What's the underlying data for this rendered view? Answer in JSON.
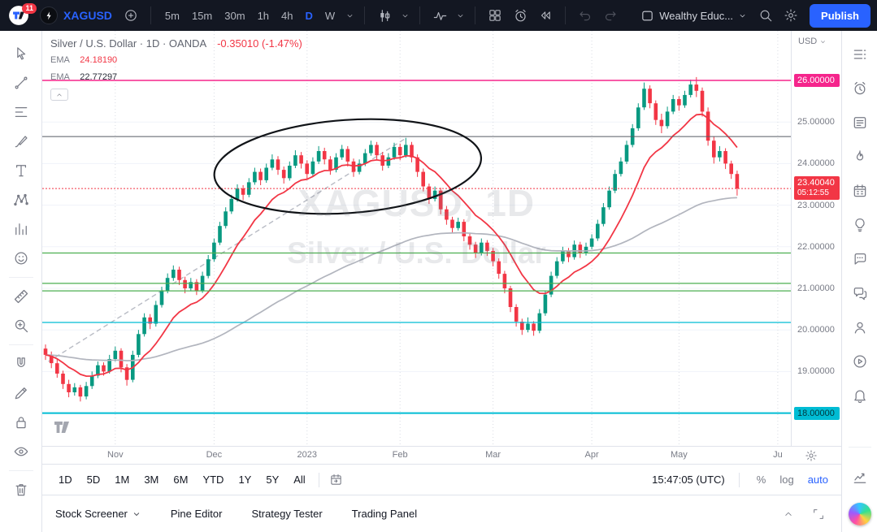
{
  "topbar": {
    "notification_count": "11",
    "symbol": "XAGUSD",
    "timeframes": [
      "5m",
      "15m",
      "30m",
      "1h",
      "4h",
      "D",
      "W"
    ],
    "active_timeframe": "D",
    "layout_name": "Wealthy Educ...",
    "publish_label": "Publish"
  },
  "left_toolbar": {
    "groups": [
      [
        "cursor",
        "trend-line",
        "fib-retracement",
        "brush",
        "text",
        "xabcd-pattern",
        "forecast",
        "emoji"
      ],
      [
        "ruler",
        "zoom"
      ],
      [
        "magnet",
        "edit",
        "lock",
        "eye"
      ],
      [
        "trash"
      ]
    ]
  },
  "right_sidebar": {
    "items": [
      "watchlist",
      "alerts",
      "news",
      "hotlists",
      "economic-calendar",
      "ideas",
      "chat",
      "messages",
      "streams",
      "videos",
      "notifications"
    ],
    "bottom_items": [
      "chart-arrow",
      "ai-assistant"
    ]
  },
  "legend": {
    "title": "Silver / U.S. Dollar · 1D · OANDA",
    "change": "-0.35010 (-1.47%)",
    "ema1_label": "EMA",
    "ema1_value": "24.18190",
    "ema2_label": "EMA",
    "ema2_value": "22.77297"
  },
  "price_scale": {
    "currency": "USD"
  },
  "range_toolbar": {
    "ranges": [
      "1D",
      "5D",
      "1M",
      "3M",
      "6M",
      "YTD",
      "1Y",
      "5Y",
      "All"
    ],
    "clock": "15:47:05 (UTC)",
    "percent": "%",
    "log": "log",
    "auto": "auto"
  },
  "bottom_panel": {
    "tabs": [
      "Stock Screener",
      "Pine Editor",
      "Strategy Tester",
      "Trading Panel"
    ]
  },
  "chart_data": {
    "type": "candlestick",
    "title": "Silver / U.S. Dollar",
    "symbol": "XAGUSD",
    "interval": "1D",
    "exchange": "OANDA",
    "change": "-0.35010",
    "change_pct": "-1.47%",
    "last_price": 23.4004,
    "last_price_label": "23.40040",
    "countdown": "05:12:55",
    "watermark_line1": "XAGUSD, 1D",
    "watermark_line2": "Silver / U.S. Dollar",
    "price_axis": {
      "min": 17.2,
      "max": 27.2,
      "gridlines": [
        26,
        25,
        24,
        23,
        22,
        21,
        20,
        19,
        18
      ],
      "decimals": 5
    },
    "x_axis_months": [
      {
        "label": "Nov",
        "index": 12
      },
      {
        "label": "Dec",
        "index": 29
      },
      {
        "label": "2023",
        "index": 45
      },
      {
        "label": "Feb",
        "index": 61
      },
      {
        "label": "Mar",
        "index": 77
      },
      {
        "label": "Apr",
        "index": 94
      },
      {
        "label": "May",
        "index": 109
      },
      {
        "label": "Ju",
        "index": 126
      }
    ],
    "ohlc": [
      [
        19.55,
        19.65,
        19.28,
        19.4
      ],
      [
        19.4,
        19.48,
        19.08,
        19.2
      ],
      [
        19.2,
        19.3,
        18.85,
        18.95
      ],
      [
        18.95,
        19.02,
        18.58,
        18.7
      ],
      [
        18.7,
        18.8,
        18.38,
        18.5
      ],
      [
        18.5,
        18.72,
        18.42,
        18.62
      ],
      [
        18.62,
        18.68,
        18.28,
        18.4
      ],
      [
        18.4,
        18.75,
        18.33,
        18.65
      ],
      [
        18.65,
        19.0,
        18.58,
        18.9
      ],
      [
        18.9,
        19.24,
        18.84,
        19.15
      ],
      [
        19.15,
        19.22,
        18.9,
        19.0
      ],
      [
        19.0,
        19.4,
        18.95,
        19.3
      ],
      [
        19.3,
        19.6,
        19.24,
        19.5
      ],
      [
        19.5,
        19.56,
        18.98,
        19.1
      ],
      [
        19.1,
        19.18,
        18.66,
        18.8
      ],
      [
        18.8,
        19.5,
        18.74,
        19.4
      ],
      [
        19.4,
        20.0,
        19.34,
        19.9
      ],
      [
        19.9,
        20.4,
        19.84,
        20.3
      ],
      [
        20.3,
        20.38,
        20.02,
        20.15
      ],
      [
        20.15,
        20.7,
        20.08,
        20.6
      ],
      [
        20.6,
        21.04,
        20.54,
        20.95
      ],
      [
        20.95,
        21.36,
        20.88,
        21.25
      ],
      [
        21.25,
        21.55,
        21.18,
        21.45
      ],
      [
        21.45,
        21.52,
        21.08,
        21.2
      ],
      [
        21.2,
        21.28,
        20.88,
        21.0
      ],
      [
        21.0,
        21.25,
        20.93,
        21.15
      ],
      [
        21.15,
        21.22,
        20.84,
        20.95
      ],
      [
        20.95,
        21.4,
        20.89,
        21.3
      ],
      [
        21.3,
        21.8,
        21.24,
        21.7
      ],
      [
        21.7,
        22.2,
        21.64,
        22.1
      ],
      [
        22.1,
        22.6,
        22.04,
        22.5
      ],
      [
        22.5,
        22.95,
        22.44,
        22.85
      ],
      [
        22.85,
        23.25,
        22.79,
        23.15
      ],
      [
        23.15,
        23.5,
        23.08,
        23.4
      ],
      [
        23.4,
        23.48,
        23.12,
        23.25
      ],
      [
        23.25,
        23.65,
        23.19,
        23.55
      ],
      [
        23.55,
        23.9,
        23.49,
        23.8
      ],
      [
        23.8,
        23.88,
        23.48,
        23.6
      ],
      [
        23.6,
        24.0,
        23.54,
        23.9
      ],
      [
        23.9,
        24.22,
        23.84,
        24.1
      ],
      [
        24.1,
        24.18,
        23.73,
        23.85
      ],
      [
        23.85,
        23.93,
        23.52,
        23.65
      ],
      [
        23.65,
        24.05,
        23.59,
        23.95
      ],
      [
        23.95,
        24.32,
        23.89,
        24.2
      ],
      [
        24.2,
        24.28,
        23.88,
        24.0
      ],
      [
        24.0,
        24.08,
        23.62,
        23.75
      ],
      [
        23.75,
        24.15,
        23.69,
        24.05
      ],
      [
        24.05,
        24.42,
        23.99,
        24.3
      ],
      [
        24.3,
        24.38,
        23.98,
        24.1
      ],
      [
        24.1,
        24.18,
        23.73,
        23.85
      ],
      [
        23.85,
        24.25,
        23.79,
        24.15
      ],
      [
        24.15,
        24.45,
        24.09,
        24.35
      ],
      [
        24.35,
        24.42,
        23.93,
        24.05
      ],
      [
        24.05,
        24.12,
        23.68,
        23.8
      ],
      [
        23.8,
        24.1,
        23.74,
        24.0
      ],
      [
        24.0,
        24.35,
        23.94,
        24.25
      ],
      [
        24.25,
        24.55,
        24.19,
        24.45
      ],
      [
        24.45,
        24.52,
        24.08,
        24.2
      ],
      [
        24.2,
        24.28,
        23.83,
        23.95
      ],
      [
        23.95,
        24.25,
        23.89,
        24.15
      ],
      [
        24.15,
        24.5,
        24.09,
        24.4
      ],
      [
        24.4,
        24.48,
        24.08,
        24.2
      ],
      [
        24.2,
        24.62,
        24.14,
        24.45
      ],
      [
        24.45,
        24.52,
        24.03,
        24.15
      ],
      [
        24.15,
        24.22,
        23.68,
        23.8
      ],
      [
        23.8,
        23.88,
        23.33,
        23.45
      ],
      [
        23.45,
        23.52,
        23.03,
        23.15
      ],
      [
        23.15,
        23.45,
        23.09,
        23.35
      ],
      [
        23.35,
        23.42,
        22.78,
        22.9
      ],
      [
        22.9,
        22.98,
        22.53,
        22.65
      ],
      [
        22.65,
        22.72,
        22.33,
        22.45
      ],
      [
        22.45,
        22.7,
        22.39,
        22.6
      ],
      [
        22.6,
        22.66,
        22.13,
        22.25
      ],
      [
        22.25,
        22.32,
        21.93,
        22.05
      ],
      [
        22.05,
        22.12,
        21.73,
        21.85
      ],
      [
        21.85,
        22.2,
        21.79,
        22.1
      ],
      [
        22.1,
        22.16,
        21.78,
        21.9
      ],
      [
        21.9,
        21.97,
        21.53,
        21.65
      ],
      [
        21.65,
        21.72,
        21.23,
        21.35
      ],
      [
        21.35,
        21.42,
        20.88,
        21.0
      ],
      [
        21.0,
        21.06,
        20.43,
        20.55
      ],
      [
        20.55,
        20.62,
        20.08,
        20.2
      ],
      [
        20.2,
        20.27,
        19.88,
        20.0
      ],
      [
        20.0,
        20.3,
        19.94,
        20.15
      ],
      [
        20.15,
        20.21,
        19.86,
        19.98
      ],
      [
        19.98,
        20.5,
        19.92,
        20.4
      ],
      [
        20.4,
        20.95,
        20.34,
        20.85
      ],
      [
        20.85,
        21.4,
        20.79,
        21.3
      ],
      [
        21.3,
        21.75,
        21.24,
        21.65
      ],
      [
        21.65,
        22.0,
        21.59,
        21.9
      ],
      [
        21.9,
        21.97,
        21.63,
        21.75
      ],
      [
        21.75,
        22.15,
        21.69,
        22.05
      ],
      [
        22.05,
        22.12,
        21.73,
        21.85
      ],
      [
        21.85,
        22.1,
        21.79,
        22.0
      ],
      [
        22.0,
        22.3,
        21.94,
        22.2
      ],
      [
        22.2,
        22.65,
        22.14,
        22.55
      ],
      [
        22.55,
        23.05,
        22.49,
        22.95
      ],
      [
        22.95,
        23.45,
        22.89,
        23.35
      ],
      [
        23.35,
        23.85,
        23.29,
        23.75
      ],
      [
        23.75,
        24.15,
        23.69,
        24.05
      ],
      [
        24.05,
        24.55,
        23.99,
        24.45
      ],
      [
        24.45,
        24.95,
        24.39,
        24.85
      ],
      [
        24.85,
        25.45,
        24.79,
        25.35
      ],
      [
        25.35,
        25.95,
        25.29,
        25.8
      ],
      [
        25.8,
        25.88,
        25.33,
        25.45
      ],
      [
        25.45,
        25.52,
        24.93,
        25.05
      ],
      [
        25.05,
        25.2,
        24.73,
        24.9
      ],
      [
        24.9,
        25.37,
        24.84,
        25.25
      ],
      [
        25.25,
        25.65,
        25.19,
        25.55
      ],
      [
        25.55,
        25.62,
        25.27,
        25.4
      ],
      [
        25.4,
        25.75,
        25.34,
        25.65
      ],
      [
        25.65,
        26.02,
        25.59,
        25.9
      ],
      [
        25.9,
        26.08,
        25.6,
        25.75
      ],
      [
        25.75,
        25.83,
        25.13,
        25.25
      ],
      [
        25.25,
        25.35,
        24.43,
        24.55
      ],
      [
        24.55,
        24.65,
        24.0,
        24.15
      ],
      [
        24.15,
        24.42,
        24.05,
        24.3
      ],
      [
        24.3,
        24.37,
        23.87,
        24.0
      ],
      [
        24.0,
        24.07,
        23.63,
        23.75
      ],
      [
        23.75,
        23.83,
        23.23,
        23.4
      ]
    ],
    "overlays": {
      "ema_fast": {
        "name": "EMA",
        "period": 12,
        "value": "24.18190",
        "width": 1.8
      },
      "ema_slow": {
        "name": "EMA",
        "period": 80,
        "value": "22.77297",
        "width": 1.7
      }
    },
    "horizontal_lines": [
      {
        "price": 26.0,
        "color": "#F5258C",
        "width": 1.5,
        "label": "26.00000"
      },
      {
        "price": 24.65,
        "color": "#565A63",
        "width": 1
      },
      {
        "price": 21.85,
        "color": "#4CAF50",
        "width": 1.2
      },
      {
        "price": 21.12,
        "color": "#4CAF50",
        "width": 1.2
      },
      {
        "price": 20.94,
        "color": "#4CAF50",
        "width": 1.2
      },
      {
        "price": 20.18,
        "color": "#00BCD4",
        "width": 1.2
      },
      {
        "price": 18.0,
        "color": "#00BCD4",
        "width": 2,
        "label": "18.00000",
        "text_dark": true
      }
    ],
    "trendline": {
      "x1_index": 0.5,
      "y1_price": 19.24,
      "x2_index": 62,
      "y2_price": 24.61,
      "style": "dashed",
      "color": "#B8BBC4"
    },
    "ellipse_annotation": {
      "center_index": 52,
      "center_price": 23.93,
      "rx_candles": 23,
      "ry_price": 1.12,
      "rotation_deg": -4,
      "color": "#111418"
    },
    "colors": {
      "up": "#089981",
      "down": "#F23645",
      "grid": "#F0F3FA",
      "vgrid": "#D8DBE3",
      "ema_fast": "#F23645",
      "ema_slow": "#B2B5BE",
      "accent": "#2962FF"
    }
  }
}
